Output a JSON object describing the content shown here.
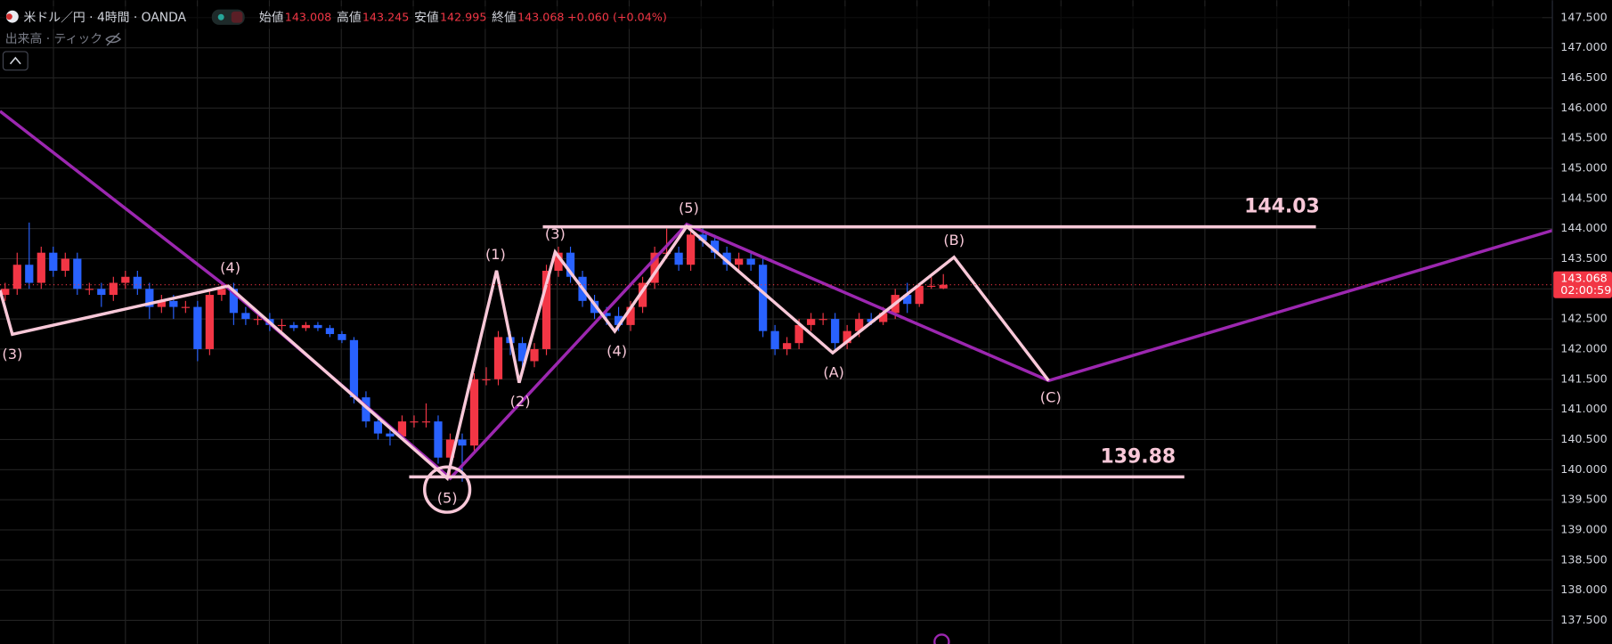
{
  "chart_data": {
    "type": "candlestick",
    "title": "米ドル／円 · 4時間 · OANDA",
    "header_labels": [
      "始値",
      "高値",
      "安値",
      "終値"
    ],
    "change": "+0.060 (+0.04%)",
    "volume_legend": "出来高 · ティック",
    "countdown": "02:00:59",
    "up_color": "#f23645",
    "down_color": "#2962ff",
    "grid": true,
    "open": [
      142.9,
      143.0,
      143.4,
      143.1,
      143.6,
      143.3,
      143.5,
      143.0,
      143.0,
      142.9,
      143.1,
      143.2,
      143.0,
      142.7,
      142.8,
      142.7,
      142.7,
      142.0,
      142.9,
      143.0,
      142.6,
      142.5,
      142.5,
      142.4,
      142.4,
      142.35,
      142.4,
      142.35,
      142.25,
      142.15,
      141.2,
      140.8,
      140.6,
      140.55,
      140.8,
      140.8,
      140.8,
      140.2,
      140.5,
      140.4,
      141.5,
      141.5,
      142.2,
      142.1,
      141.8,
      142.0,
      143.3,
      143.6,
      143.2,
      142.8,
      142.6,
      142.55,
      142.4,
      142.7,
      143.1,
      143.6,
      143.6,
      143.4,
      143.9,
      143.8,
      143.6,
      143.4,
      143.5,
      143.4,
      142.3,
      142.0,
      142.1,
      142.4,
      142.5,
      142.5,
      142.1,
      142.3,
      142.5,
      142.45,
      142.6,
      142.9,
      142.75,
      143.05,
      143.008
    ],
    "high": [
      143.1,
      143.6,
      144.1,
      143.7,
      143.7,
      143.6,
      143.6,
      143.1,
      143.1,
      143.2,
      143.3,
      143.3,
      143.1,
      142.9,
      142.9,
      142.8,
      142.8,
      143.0,
      143.1,
      143.1,
      142.7,
      142.6,
      142.6,
      142.5,
      142.45,
      142.45,
      142.45,
      142.4,
      142.3,
      142.2,
      141.3,
      140.9,
      140.7,
      140.9,
      140.9,
      141.1,
      140.9,
      140.6,
      140.6,
      141.6,
      141.7,
      142.3,
      142.3,
      142.2,
      142.1,
      143.4,
      143.7,
      143.7,
      143.3,
      142.9,
      142.7,
      142.7,
      142.8,
      143.2,
      143.7,
      144.0,
      143.7,
      144.03,
      144.0,
      143.9,
      143.7,
      143.6,
      143.6,
      143.5,
      142.4,
      142.2,
      142.5,
      142.6,
      142.6,
      142.6,
      142.4,
      142.6,
      142.6,
      142.7,
      143.0,
      143.1,
      143.1,
      143.2,
      143.245
    ],
    "low": [
      142.8,
      142.9,
      143.0,
      143.0,
      143.2,
      143.2,
      142.9,
      142.9,
      142.7,
      142.8,
      143.0,
      142.9,
      142.5,
      142.6,
      142.5,
      142.6,
      141.8,
      141.9,
      142.8,
      142.4,
      142.4,
      142.4,
      142.3,
      142.3,
      142.3,
      142.3,
      142.3,
      142.2,
      142.1,
      141.1,
      140.7,
      140.5,
      140.4,
      140.5,
      140.7,
      140.7,
      140.1,
      139.9,
      139.8,
      140.3,
      141.4,
      141.4,
      141.9,
      141.7,
      141.7,
      141.9,
      143.2,
      143.1,
      142.7,
      142.5,
      142.4,
      142.3,
      142.3,
      142.6,
      143.0,
      143.5,
      143.3,
      143.3,
      143.7,
      143.5,
      143.3,
      143.3,
      143.3,
      142.2,
      141.9,
      141.9,
      142.0,
      142.3,
      142.4,
      142.0,
      142.0,
      142.2,
      142.4,
      142.4,
      142.5,
      142.6,
      142.7,
      143.0,
      142.995
    ],
    "close": [
      143.0,
      143.4,
      143.1,
      143.6,
      143.3,
      143.5,
      143.0,
      143.0,
      142.9,
      143.1,
      143.2,
      143.0,
      142.7,
      142.8,
      142.7,
      142.7,
      142.0,
      142.9,
      143.0,
      142.6,
      142.5,
      142.5,
      142.4,
      142.4,
      142.35,
      142.4,
      142.35,
      142.25,
      142.15,
      141.2,
      140.8,
      140.6,
      140.55,
      140.8,
      140.8,
      140.8,
      140.2,
      140.5,
      140.4,
      141.5,
      141.5,
      142.2,
      142.1,
      141.8,
      142.0,
      143.3,
      143.6,
      143.2,
      142.8,
      142.6,
      142.55,
      142.4,
      142.7,
      143.1,
      143.6,
      143.6,
      143.4,
      143.9,
      143.8,
      143.6,
      143.4,
      143.5,
      143.4,
      142.3,
      142.0,
      142.1,
      142.4,
      142.5,
      142.5,
      142.1,
      142.3,
      142.5,
      142.45,
      142.6,
      142.9,
      142.75,
      143.05,
      143.05,
      143.068
    ],
    "ylim": [
      137.11,
      147.79
    ],
    "yticks": [
      {
        "value": 137.5,
        "label": "137.500"
      },
      {
        "value": 138,
        "label": "138.000"
      },
      {
        "value": 138.5,
        "label": "138.500"
      },
      {
        "value": 139,
        "label": "139.000"
      },
      {
        "value": 139.5,
        "label": "139.500"
      },
      {
        "value": 140,
        "label": "140.000"
      },
      {
        "value": 140.5,
        "label": "140.500"
      },
      {
        "value": 141,
        "label": "141.000"
      },
      {
        "value": 141.5,
        "label": "141.500"
      },
      {
        "value": 142,
        "label": "142.000"
      },
      {
        "value": 142.5,
        "label": "142.500"
      },
      {
        "value": 143,
        "label": "143.000"
      },
      {
        "value": 143.5,
        "label": "143.500"
      },
      {
        "value": 144,
        "label": "144.000"
      },
      {
        "value": 144.5,
        "label": "144.500"
      },
      {
        "value": 145,
        "label": "145.000"
      },
      {
        "value": 145.5,
        "label": "145.500"
      },
      {
        "value": 146,
        "label": "146.000"
      },
      {
        "value": 146.5,
        "label": "146.500"
      },
      {
        "value": 147,
        "label": "147.000"
      },
      {
        "value": 147.5,
        "label": "147.500"
      }
    ],
    "levels": [
      144.03,
      139.88
    ],
    "waves": [
      "(3)",
      "(4)",
      "(5)",
      "(1)",
      "(2)",
      "(3)",
      "(4)",
      "(5)",
      "(A)",
      "(B)",
      "(C)"
    ]
  }
}
